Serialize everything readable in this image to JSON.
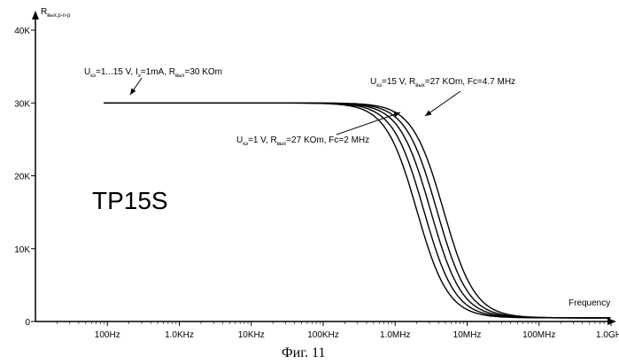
{
  "chart_data": {
    "type": "line",
    "x_scale": "log",
    "y_scale": "linear",
    "xlabel": "Frequency",
    "ylabel": {
      "main": "R",
      "sub": "вых.p-n-p"
    },
    "xlim": [
      10,
      1000000000
    ],
    "ylim": [
      0,
      40000
    ],
    "x_ticks": [
      {
        "value": 100,
        "label": "100Hz"
      },
      {
        "value": 1000,
        "label": "1.0KHz"
      },
      {
        "value": 10000,
        "label": "10KHz"
      },
      {
        "value": 100000,
        "label": "100KHz"
      },
      {
        "value": 1000000,
        "label": "1.0MHz"
      },
      {
        "value": 10000000,
        "label": "10MHz"
      },
      {
        "value": 100000000,
        "label": "100MHz"
      },
      {
        "value": 1000000000,
        "label": "1.0GHz"
      }
    ],
    "y_ticks": [
      {
        "value": 0,
        "label": "0"
      },
      {
        "value": 10000,
        "label": "10K"
      },
      {
        "value": 20000,
        "label": "20K"
      },
      {
        "value": 30000,
        "label": "30K"
      },
      {
        "value": 40000,
        "label": "40K"
      }
    ],
    "series": [
      {
        "fc": 2000000,
        "r0": 30000,
        "rinf": 500
      },
      {
        "fc": 2500000,
        "r0": 30000,
        "rinf": 500
      },
      {
        "fc": 3100000,
        "r0": 30000,
        "rinf": 500
      },
      {
        "fc": 3800000,
        "r0": 30000,
        "rinf": 500
      },
      {
        "fc": 4700000,
        "r0": 30000,
        "rinf": 500
      }
    ],
    "annotations": {
      "top_left": [
        {
          "t": "U",
          "sub": false
        },
        {
          "t": "кэ",
          "sub": true
        },
        {
          "t": "=1...15 V, I",
          "sub": false
        },
        {
          "t": "э",
          "sub": true
        },
        {
          "t": "=1mA, R",
          "sub": false
        },
        {
          "t": "вых",
          "sub": true
        },
        {
          "t": "=30 KOm",
          "sub": false
        }
      ],
      "top_right": [
        {
          "t": "U",
          "sub": false
        },
        {
          "t": "кэ",
          "sub": true
        },
        {
          "t": "=15 V, R",
          "sub": false
        },
        {
          "t": "вых",
          "sub": true
        },
        {
          "t": "=27 KOm, Fc=4.7 MHz",
          "sub": false
        }
      ],
      "middle": [
        {
          "t": "U",
          "sub": false
        },
        {
          "t": "кэ",
          "sub": true
        },
        {
          "t": "=1 V, R",
          "sub": false
        },
        {
          "t": "вых",
          "sub": true
        },
        {
          "t": "=27 KOm, Fc=2 MHz",
          "sub": false
        }
      ]
    },
    "device_label": "TP15S",
    "caption": "Фиг. 11"
  }
}
